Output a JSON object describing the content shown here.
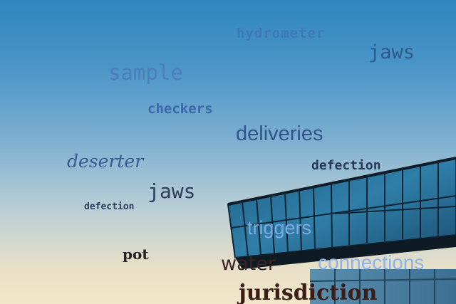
{
  "words": [
    {
      "key": "w1",
      "text": "hydrometer"
    },
    {
      "key": "w2",
      "text": "jaws"
    },
    {
      "key": "w3",
      "text": "sample"
    },
    {
      "key": "w4",
      "text": "checkers"
    },
    {
      "key": "w5",
      "text": "deliveries"
    },
    {
      "key": "w6",
      "text": "deserter"
    },
    {
      "key": "w7",
      "text": "defection"
    },
    {
      "key": "w8",
      "text": "jaws"
    },
    {
      "key": "w9",
      "text": "defection"
    },
    {
      "key": "w10",
      "text": "triggers"
    },
    {
      "key": "w11",
      "text": "pot"
    },
    {
      "key": "w12",
      "text": "water"
    },
    {
      "key": "w13",
      "text": "connections"
    },
    {
      "key": "w14",
      "text": "jurisdiction"
    }
  ]
}
